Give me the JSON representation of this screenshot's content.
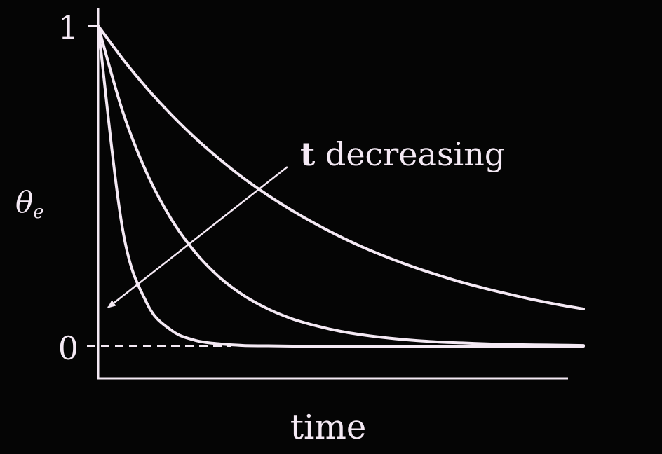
{
  "chart_data": {
    "type": "line",
    "xlabel": "time",
    "ylabel": "θ",
    "ylabel_sub": "e",
    "ylim": [
      0,
      1
    ],
    "yticks": [
      {
        "value": 1,
        "label": "1"
      },
      {
        "value": 0,
        "label": "0"
      }
    ],
    "x": [
      0,
      0.05,
      0.1,
      0.15,
      0.2,
      0.25,
      0.3,
      0.35,
      0.4,
      0.45,
      0.5,
      0.55,
      0.6,
      0.65,
      0.7,
      0.75,
      0.8,
      0.85,
      0.9,
      0.95,
      1
    ],
    "series": [
      {
        "values": [
          1.0,
          0.898,
          0.806,
          0.724,
          0.65,
          0.584,
          0.524,
          0.471,
          0.423,
          0.38,
          0.341,
          0.306,
          0.275,
          0.247,
          0.222,
          0.199,
          0.179,
          0.161,
          0.144,
          0.129,
          0.116
        ]
      },
      {
        "values": [
          1.0,
          0.735,
          0.541,
          0.398,
          0.293,
          0.215,
          0.158,
          0.116,
          0.085,
          0.063,
          0.046,
          0.034,
          0.025,
          0.018,
          0.013,
          0.01,
          0.007,
          0.005,
          0.004,
          0.003,
          0.002
        ]
      },
      {
        "values": [
          1.0,
          0.368,
          0.135,
          0.05,
          0.018,
          0.007,
          0.002,
          0.001,
          0.0,
          0.0,
          0.0,
          0.0,
          0.0,
          0.0,
          0.0,
          0.0,
          0.0,
          0.0,
          0.0,
          0.0,
          0.0
        ]
      }
    ],
    "baseline": {
      "value": 0,
      "style": "dashed"
    },
    "annotation": {
      "text_symbol": "t",
      "text_rest": " decreasing",
      "arrow_from": [
        0.39,
        0.56
      ],
      "arrow_to": [
        0.02,
        0.12
      ]
    },
    "colors": {
      "line": "#f4e9f4",
      "background": "#050505"
    }
  }
}
